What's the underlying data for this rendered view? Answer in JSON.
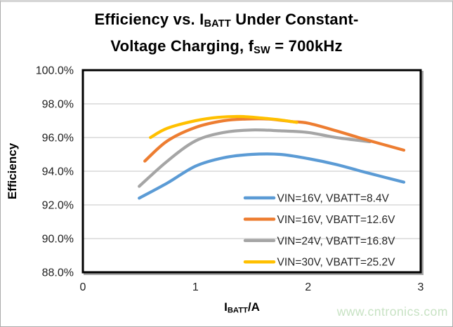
{
  "title": {
    "line1_pre": "Efficiency vs. I",
    "line1_sub": "BATT",
    "line1_post": " Under Constant-",
    "line2_pre": "Voltage Charging, f",
    "line2_sub": "SW",
    "line2_post": " = 700kHz"
  },
  "y_axis": {
    "title": "Efficiency",
    "tick_labels": [
      "100.0%",
      "98.0%",
      "96.0%",
      "94.0%",
      "92.0%",
      "90.0%",
      "88.0%"
    ],
    "tick_values": [
      100,
      98,
      96,
      94,
      92,
      90,
      88
    ]
  },
  "x_axis": {
    "title_pre": "I",
    "title_sub": "BATT",
    "title_post": "/A",
    "tick_labels": [
      "0",
      "1",
      "2",
      "3"
    ],
    "tick_values": [
      0,
      1,
      2,
      3
    ]
  },
  "watermark": {
    "text": "www.cntronics.com",
    "color": "#c7e2c3"
  },
  "styles": {
    "grid_color": "#d9d9d9",
    "axis_color": "#000000",
    "tick_text_color": "#1f1f1f",
    "legend_text_color": "#262626",
    "plot_shadow_color": "#a6a6a6",
    "background": "#ffffff"
  },
  "chart_data": {
    "type": "line",
    "title": "Efficiency vs. I_BATT Under Constant-Voltage Charging, f_SW = 700kHz",
    "xlabel": "I_BATT/A",
    "ylabel": "Efficiency",
    "xlim": [
      0,
      3
    ],
    "ylim": [
      88,
      100
    ],
    "x_ticks": [
      0,
      1,
      2,
      3
    ],
    "y_ticks_percent": [
      100.0,
      98.0,
      96.0,
      94.0,
      92.0,
      90.0,
      88.0
    ],
    "grid": true,
    "legend_position": "inside-bottom-right",
    "z_order": [
      0,
      2,
      1,
      3
    ],
    "series": [
      {
        "name": "VIN=16V, VBATT=8.4V",
        "color": "#5B9BD5",
        "x": [
          0.5,
          0.75,
          1.0,
          1.25,
          1.5,
          1.75,
          2.0,
          2.25,
          2.5,
          2.85
        ],
        "y": [
          92.4,
          93.3,
          94.3,
          94.8,
          95.0,
          95.0,
          94.75,
          94.4,
          93.95,
          93.35
        ]
      },
      {
        "name": "VIN=16V, VBATT=12.6V",
        "color": "#ED7D31",
        "x": [
          0.55,
          0.75,
          1.0,
          1.25,
          1.45,
          1.65,
          1.85,
          2.0,
          2.25,
          2.5,
          2.85
        ],
        "y": [
          94.6,
          95.8,
          96.6,
          97.0,
          97.1,
          97.1,
          96.95,
          96.85,
          96.4,
          95.9,
          95.25
        ]
      },
      {
        "name": "VIN=24V, VBATT=16.8V",
        "color": "#A5A5A5",
        "x": [
          0.5,
          0.75,
          1.0,
          1.25,
          1.5,
          1.75,
          2.0,
          2.25,
          2.55
        ],
        "y": [
          93.1,
          94.6,
          95.8,
          96.3,
          96.45,
          96.4,
          96.3,
          96.0,
          95.75
        ]
      },
      {
        "name": "VIN=30V, VBATT=25.2V",
        "color": "#FFC000",
        "x": [
          0.6,
          0.75,
          1.0,
          1.2,
          1.4,
          1.6,
          1.75,
          1.9
        ],
        "y": [
          96.0,
          96.55,
          97.0,
          97.2,
          97.25,
          97.15,
          97.05,
          96.9
        ]
      }
    ]
  }
}
